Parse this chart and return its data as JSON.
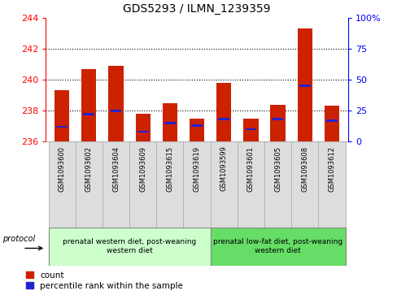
{
  "title": "GDS5293 / ILMN_1239359",
  "samples": [
    "GSM1093600",
    "GSM1093602",
    "GSM1093604",
    "GSM1093609",
    "GSM1093615",
    "GSM1093619",
    "GSM1093599",
    "GSM1093601",
    "GSM1093605",
    "GSM1093608",
    "GSM1093612"
  ],
  "counts": [
    239.3,
    240.7,
    240.9,
    237.8,
    238.5,
    237.5,
    239.8,
    237.5,
    238.4,
    243.3,
    238.3
  ],
  "percentiles": [
    12,
    22,
    25,
    8,
    15,
    13,
    18,
    10,
    18,
    45,
    17
  ],
  "ylim": [
    236,
    244
  ],
  "yticks": [
    236,
    238,
    240,
    242,
    244
  ],
  "y2lim": [
    0,
    100
  ],
  "y2ticks": [
    0,
    25,
    50,
    75,
    100
  ],
  "bar_color": "#cc2200",
  "percentile_color": "#2222cc",
  "group1_label": "prenatal western diet, post-weaning\nwestern diet",
  "group2_label": "prenatal low-fat diet, post-weaning\nwestern diet",
  "group1_color": "#ccffcc",
  "group2_color": "#66dd66",
  "protocol_label": "protocol",
  "legend_count": "count",
  "legend_pct": "percentile rank within the sample",
  "bar_width": 0.55,
  "group1_count": 6,
  "group2_count": 5,
  "tick_bg": "#dddddd",
  "grid_yticks": [
    238,
    240,
    242
  ]
}
